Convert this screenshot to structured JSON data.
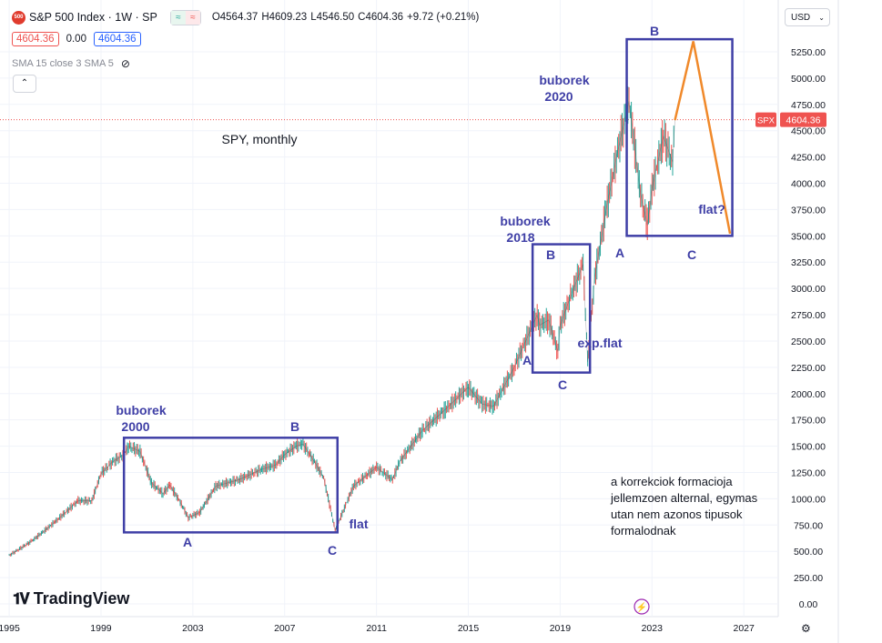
{
  "header": {
    "logo_text": "500",
    "symbol": "S&P 500 Index · 1W · SP",
    "compare_a": "≈",
    "compare_b": "≈",
    "open": "O4564.37",
    "high": "H4609.23",
    "low": "L4546.50",
    "close": "C4604.36",
    "change": "+9.72 (+0.21%)",
    "sell_price": "4604.36",
    "spread": "0.00",
    "buy_price": "4604.36",
    "indicator": "SMA 15 close 3 SMA 5",
    "currency": "USD"
  },
  "annotations": {
    "title": "SPY, monthly",
    "bubble_2000": [
      "buborek",
      "2000"
    ],
    "bubble_2018": [
      "buborek",
      "2018"
    ],
    "bubble_2020": [
      "buborek",
      "2020"
    ],
    "flat": "flat",
    "exp_flat": "exp.flat",
    "flat_q": "flat?",
    "labels": {
      "A": "A",
      "B": "B",
      "C": "C"
    },
    "note": "a korrekciok formacioja jellemzoen alternal, egymas utan nem azonos tipusok formalodnak"
  },
  "price_tag": {
    "label": "SPX",
    "value": "4604.36"
  },
  "branding": "TradingView",
  "chart_data": {
    "type": "line",
    "title": "",
    "x_ticks": [
      "1995",
      "1999",
      "2003",
      "2007",
      "2011",
      "2015",
      "2019",
      "2023",
      "2027"
    ],
    "y_ticks": [
      "0.00",
      "250.00",
      "500.00",
      "750.00",
      "1000.00",
      "1250.00",
      "1500.00",
      "1750.00",
      "2000.00",
      "2250.00",
      "2500.00",
      "2750.00",
      "3000.00",
      "3250.00",
      "3500.00",
      "3750.00",
      "4000.00",
      "4250.00",
      "4500.00",
      "4750.00",
      "5000.00",
      "5250.00"
    ],
    "ylim": [
      -40,
      5600
    ],
    "xlim": [
      1994.6,
      2028.5
    ],
    "series": [
      {
        "x": [
          1995.0,
          1996.0,
          1997.0,
          1998.0,
          1998.6,
          1999.0,
          1999.5,
          2000.0,
          2000.2,
          2000.7,
          2001.2,
          2001.7,
          2002.0,
          2002.5,
          2002.8,
          2003.3,
          2004.0,
          2005.0,
          2006.0,
          2006.6,
          2007.0,
          2007.5,
          2007.8,
          2008.3,
          2008.7,
          2009.0,
          2009.2,
          2010.0,
          2011.0,
          2011.7,
          2012.0,
          2013.0,
          2014.0,
          2015.0,
          2015.6,
          2016.1,
          2017.0,
          2018.0,
          2018.1,
          2018.5,
          2018.9,
          2019.0,
          2019.5,
          2020.0,
          2020.2,
          2020.5,
          2021.0,
          2021.5,
          2022.0,
          2022.5,
          2022.8,
          2023.0,
          2023.5,
          2023.9,
          2024.0
        ],
        "y": [
          460,
          600,
          780,
          980,
          980,
          1240,
          1350,
          1420,
          1500,
          1450,
          1150,
          1050,
          1130,
          950,
          820,
          870,
          1120,
          1180,
          1280,
          1320,
          1420,
          1500,
          1520,
          1350,
          1200,
          900,
          700,
          1120,
          1300,
          1180,
          1350,
          1650,
          1850,
          2060,
          1900,
          1880,
          2250,
          2750,
          2650,
          2700,
          2400,
          2650,
          2950,
          3230,
          2300,
          3100,
          3750,
          4300,
          4780,
          3900,
          3600,
          3950,
          4450,
          4200,
          4604
        ]
      }
    ],
    "overlay": {
      "boxes": [
        {
          "x0": 2000.0,
          "x1": 2009.3,
          "y0": 680,
          "y1": 1580
        },
        {
          "x0": 2017.8,
          "x1": 2020.3,
          "y0": 2200,
          "y1": 3420
        },
        {
          "x0": 2021.9,
          "x1": 2026.5,
          "y0": 3500,
          "y1": 5370
        }
      ],
      "projection": [
        [
          2024.0,
          4600
        ],
        [
          2024.8,
          5350
        ],
        [
          2026.4,
          3520
        ]
      ]
    }
  }
}
